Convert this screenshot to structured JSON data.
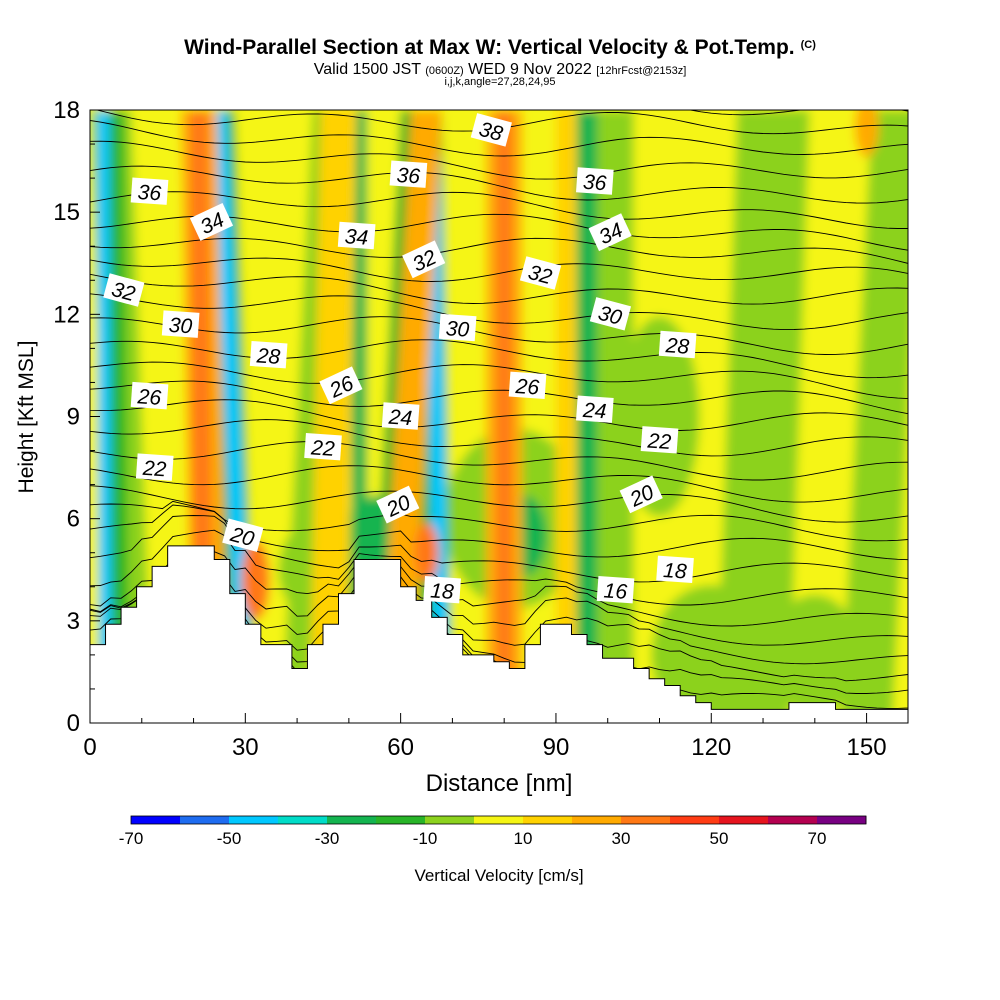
{
  "chart_data": {
    "type": "heatmap",
    "title": "Wind-Parallel Section at Max W: Vertical Velocity & Pot.Temp.",
    "title_mark": "(C)",
    "subtitle": {
      "prefix": "Valid 1500 JST",
      "utc": "(0600Z)",
      "date": "WED 9 Nov 2022",
      "forecast": "[12hrFcst@2153z]"
    },
    "subtitle2": "i,j,k,angle=27,28,24,95",
    "xlabel": "Distance [nm]",
    "ylabel": "Height [Kft MSL]",
    "xlim": [
      0,
      158
    ],
    "ylim": [
      0,
      18
    ],
    "xticks": [
      0,
      30,
      60,
      90,
      120,
      150
    ],
    "yticks": [
      0,
      3,
      6,
      9,
      12,
      15,
      18
    ],
    "colorbar": {
      "label": "Vertical Velocity [cm/s]",
      "tick_labels": [
        -70,
        -50,
        -30,
        -10,
        10,
        30,
        50,
        70
      ],
      "colors": [
        "#0000ff",
        "#1e6cf0",
        "#00c8ff",
        "#00dcc8",
        "#14b450",
        "#28b428",
        "#8cd21e",
        "#f5f514",
        "#ffd200",
        "#ffaa00",
        "#ff7814",
        "#ff3c14",
        "#e6141e",
        "#b40050",
        "#780082"
      ]
    },
    "terrain_kft": [
      [
        0,
        2.3
      ],
      [
        3,
        2.9
      ],
      [
        6,
        3.4
      ],
      [
        9,
        4.0
      ],
      [
        12,
        4.6
      ],
      [
        15,
        5.2
      ],
      [
        18,
        5.2
      ],
      [
        21,
        5.2
      ],
      [
        24,
        4.8
      ],
      [
        27,
        3.8
      ],
      [
        30,
        2.9
      ],
      [
        33,
        2.3
      ],
      [
        36,
        2.3
      ],
      [
        39,
        1.6
      ],
      [
        42,
        2.3
      ],
      [
        45,
        2.9
      ],
      [
        48,
        3.8
      ],
      [
        51,
        4.8
      ],
      [
        54,
        4.8
      ],
      [
        57,
        4.8
      ],
      [
        60,
        4.0
      ],
      [
        63,
        3.6
      ],
      [
        66,
        3.1
      ],
      [
        69,
        2.6
      ],
      [
        72,
        2.0
      ],
      [
        75,
        2.0
      ],
      [
        78,
        1.8
      ],
      [
        81,
        1.6
      ],
      [
        84,
        2.3
      ],
      [
        87,
        2.9
      ],
      [
        90,
        2.9
      ],
      [
        93,
        2.6
      ],
      [
        96,
        2.3
      ],
      [
        99,
        1.9
      ],
      [
        102,
        1.9
      ],
      [
        105,
        1.6
      ],
      [
        108,
        1.3
      ],
      [
        111,
        1.1
      ],
      [
        114,
        0.8
      ],
      [
        117,
        0.6
      ],
      [
        120,
        0.4
      ],
      [
        123,
        0.4
      ],
      [
        126,
        0.4
      ],
      [
        129,
        0.4
      ],
      [
        132,
        0.4
      ],
      [
        135,
        0.6
      ],
      [
        138,
        0.6
      ],
      [
        141,
        0.6
      ],
      [
        144,
        0.4
      ],
      [
        147,
        0.4
      ],
      [
        150,
        0.4
      ],
      [
        153,
        0.4
      ],
      [
        156,
        0.4
      ],
      [
        158,
        0.4
      ]
    ],
    "theta_contour_labels": [
      {
        "text": "36",
        "x": 11.5,
        "y": 15.6
      },
      {
        "text": "34",
        "x": 23.5,
        "y": 14.7
      },
      {
        "text": "32",
        "x": 6.5,
        "y": 12.7
      },
      {
        "text": "30",
        "x": 17.5,
        "y": 11.7
      },
      {
        "text": "28",
        "x": 34.5,
        "y": 10.8
      },
      {
        "text": "26",
        "x": 11.5,
        "y": 9.6
      },
      {
        "text": "26",
        "x": 48.5,
        "y": 9.9
      },
      {
        "text": "24",
        "x": 60,
        "y": 9.0
      },
      {
        "text": "22",
        "x": 12.5,
        "y": 7.5
      },
      {
        "text": "22",
        "x": 45,
        "y": 8.1
      },
      {
        "text": "20",
        "x": 29.5,
        "y": 5.5
      },
      {
        "text": "20",
        "x": 59.5,
        "y": 6.4
      },
      {
        "text": "18",
        "x": 68,
        "y": 3.9
      },
      {
        "text": "36",
        "x": 61.5,
        "y": 16.1
      },
      {
        "text": "38",
        "x": 77.5,
        "y": 17.4
      },
      {
        "text": "34",
        "x": 51.5,
        "y": 14.3
      },
      {
        "text": "32",
        "x": 64.5,
        "y": 13.6
      },
      {
        "text": "30",
        "x": 71,
        "y": 11.6
      },
      {
        "text": "32",
        "x": 87,
        "y": 13.2
      },
      {
        "text": "26",
        "x": 84.5,
        "y": 9.9
      },
      {
        "text": "36",
        "x": 97.5,
        "y": 15.9
      },
      {
        "text": "34",
        "x": 100.5,
        "y": 14.4
      },
      {
        "text": "30",
        "x": 100.5,
        "y": 12.0
      },
      {
        "text": "28",
        "x": 113.5,
        "y": 11.1
      },
      {
        "text": "24",
        "x": 97.5,
        "y": 9.2
      },
      {
        "text": "22",
        "x": 110,
        "y": 8.3
      },
      {
        "text": "20",
        "x": 106.5,
        "y": 6.7
      },
      {
        "text": "18",
        "x": 113,
        "y": 4.5
      },
      {
        "text": "16",
        "x": 101.5,
        "y": 3.9
      }
    ]
  }
}
